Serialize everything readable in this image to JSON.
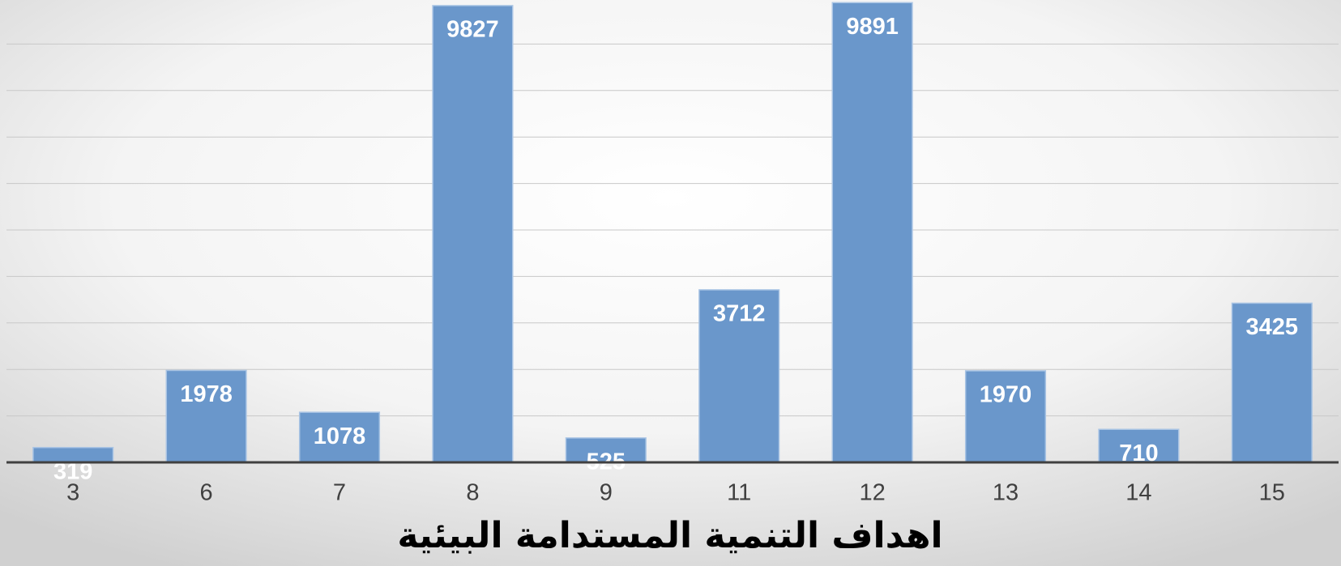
{
  "chart_data": {
    "type": "bar",
    "x_label": "اهداف التنمية المستدامة البيئية",
    "categories": [
      "3",
      "6",
      "7",
      "8",
      "9",
      "11",
      "12",
      "13",
      "14",
      "15"
    ],
    "values": [
      319,
      1978,
      1078,
      9827,
      525,
      3712,
      9891,
      1970,
      710,
      3425
    ],
    "color": "#6a97cb",
    "ylim": [
      0,
      10000
    ],
    "yticks": [
      0,
      1000,
      2000,
      3000,
      4000,
      5000,
      6000,
      7000,
      8000,
      9000
    ],
    "grid": true,
    "data_labels": true
  }
}
